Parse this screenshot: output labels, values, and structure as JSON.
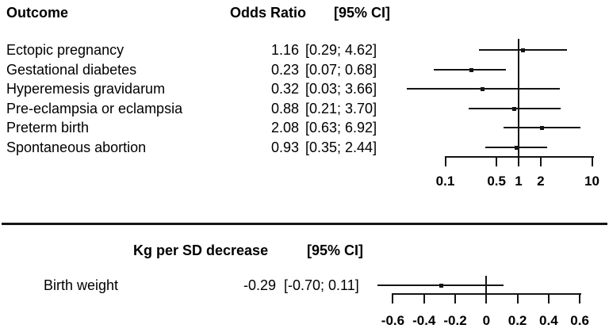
{
  "figure": {
    "background": "#ffffff",
    "line_color": "#141414",
    "text_color": "#000000"
  },
  "chart_data": [
    {
      "type": "forest",
      "panel": "odds-ratio",
      "outcome_label": "Outcome",
      "effect_label": "Odds Ratio",
      "ci_label": "[95% CI]",
      "x_scale": "log10",
      "x_ticks": [
        0.1,
        0.5,
        1,
        2,
        10
      ],
      "x_tick_labels": [
        "0.1",
        "0.5",
        "1",
        "2",
        "10"
      ],
      "ref_line": 1,
      "rows": [
        {
          "label": "Ectopic pregnancy",
          "estimate": 1.16,
          "ci_low": 0.29,
          "ci_high": 4.62,
          "estimate_text": "1.16",
          "ci_text": "[0.29; 4.62]"
        },
        {
          "label": "Gestational diabetes",
          "estimate": 0.23,
          "ci_low": 0.07,
          "ci_high": 0.68,
          "estimate_text": "0.23",
          "ci_text": "[0.07; 0.68]"
        },
        {
          "label": "Hyperemesis gravidarum",
          "estimate": 0.32,
          "ci_low": 0.03,
          "ci_high": 3.66,
          "estimate_text": "0.32",
          "ci_text": "[0.03; 3.66]"
        },
        {
          "label": "Pre-eclampsia or eclampsia",
          "estimate": 0.88,
          "ci_low": 0.21,
          "ci_high": 3.7,
          "estimate_text": "0.88",
          "ci_text": "[0.21; 3.70]"
        },
        {
          "label": "Preterm birth",
          "estimate": 2.08,
          "ci_low": 0.63,
          "ci_high": 6.92,
          "estimate_text": "2.08",
          "ci_text": "[0.63; 6.92]"
        },
        {
          "label": "Spontaneous abortion",
          "estimate": 0.93,
          "ci_low": 0.35,
          "ci_high": 2.44,
          "estimate_text": "0.93",
          "ci_text": "[0.35; 2.44]"
        }
      ]
    },
    {
      "type": "forest",
      "panel": "kg-per-sd-decrease",
      "effect_label": "Kg per SD decrease",
      "ci_label": "[95% CI]",
      "x_scale": "linear",
      "x_ticks": [
        -0.6,
        -0.4,
        -0.2,
        0,
        0.2,
        0.4,
        0.6
      ],
      "x_tick_labels": [
        "-0.6",
        "-0.4",
        "-0.2",
        "0",
        "0.2",
        "0.4",
        "0.6"
      ],
      "ref_line": 0,
      "rows": [
        {
          "label": "Birth weight",
          "estimate": -0.29,
          "ci_low": -0.7,
          "ci_high": 0.11,
          "estimate_text": "-0.29",
          "ci_text": "[-0.70; 0.11]"
        }
      ]
    }
  ]
}
